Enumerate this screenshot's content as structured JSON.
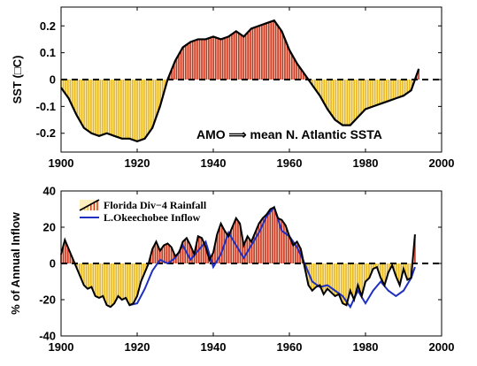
{
  "colors": {
    "positive_bar": "#c8361f",
    "negative_bar": "#e8b822",
    "positive_fill": "#f6d2c3",
    "negative_fill": "#fdf0be",
    "black_line": "#000000",
    "blue_line": "#1f2fbf"
  },
  "chart_data": [
    {
      "type": "area",
      "title": "",
      "ylabel": "SST (□C)",
      "xlabel": "",
      "xlim": [
        1900,
        2000
      ],
      "ylim": [
        -0.27,
        0.27
      ],
      "x_ticks": [
        1900,
        1920,
        1940,
        1960,
        1980,
        2000
      ],
      "x_tick_labels": [
        "1900",
        "1920",
        "1940",
        "1960",
        "1980",
        "2000"
      ],
      "y_ticks": [
        -0.2,
        -0.1,
        0,
        0.1,
        0.2
      ],
      "y_tick_labels": [
        "-0.2",
        "-0.1",
        "0",
        "0.1",
        "0.2"
      ],
      "annotation": "AMO ⟹ mean N. Atlantic SSTA",
      "fill": "bars above/below zero: red above, yellow below",
      "series": [
        {
          "name": "",
          "x": [
            1900,
            1902,
            1904,
            1906,
            1908,
            1910,
            1912,
            1914,
            1916,
            1918,
            1920,
            1922,
            1924,
            1926,
            1928,
            1930,
            1932,
            1934,
            1936,
            1938,
            1940,
            1942,
            1944,
            1946,
            1948,
            1950,
            1952,
            1954,
            1956,
            1958,
            1960,
            1962,
            1964,
            1966,
            1968,
            1970,
            1972,
            1974,
            1976,
            1978,
            1980,
            1982,
            1984,
            1986,
            1988,
            1990,
            1992,
            1994
          ],
          "values": [
            -0.03,
            -0.07,
            -0.13,
            -0.18,
            -0.2,
            -0.21,
            -0.2,
            -0.21,
            -0.22,
            -0.22,
            -0.23,
            -0.22,
            -0.18,
            -0.1,
            0.0,
            0.07,
            0.12,
            0.14,
            0.15,
            0.15,
            0.16,
            0.15,
            0.16,
            0.18,
            0.16,
            0.19,
            0.2,
            0.21,
            0.22,
            0.18,
            0.11,
            0.06,
            0.02,
            -0.02,
            -0.06,
            -0.11,
            -0.15,
            -0.17,
            -0.17,
            -0.14,
            -0.11,
            -0.1,
            -0.09,
            -0.08,
            -0.07,
            -0.06,
            -0.04,
            0.04
          ]
        }
      ]
    },
    {
      "type": "area",
      "title": "",
      "ylabel": "% of Annual Inflow",
      "xlabel": "",
      "xlim": [
        1900,
        2000
      ],
      "ylim": [
        -40,
        40
      ],
      "x_ticks": [
        1900,
        1920,
        1940,
        1960,
        1980,
        2000
      ],
      "x_tick_labels": [
        "1900",
        "1920",
        "1940",
        "1960",
        "1980",
        "2000"
      ],
      "y_ticks": [
        -40,
        -20,
        0,
        20,
        40
      ],
      "y_tick_labels": [
        "-40",
        "-20",
        "0",
        "20",
        "40"
      ],
      "legend": {
        "placement": "top-left"
      },
      "series": [
        {
          "name": "Florida Div−4 Rainfall",
          "style": "black line with red/yellow bar fill",
          "x": [
            1900,
            1901,
            1902,
            1903,
            1904,
            1905,
            1906,
            1907,
            1908,
            1909,
            1910,
            1911,
            1912,
            1913,
            1914,
            1915,
            1916,
            1917,
            1918,
            1919,
            1920,
            1921,
            1922,
            1923,
            1924,
            1925,
            1926,
            1927,
            1928,
            1929,
            1930,
            1931,
            1932,
            1933,
            1934,
            1935,
            1936,
            1937,
            1938,
            1939,
            1940,
            1941,
            1942,
            1943,
            1944,
            1945,
            1946,
            1947,
            1948,
            1949,
            1950,
            1951,
            1952,
            1953,
            1954,
            1955,
            1956,
            1957,
            1958,
            1959,
            1960,
            1961,
            1962,
            1963,
            1964,
            1965,
            1966,
            1967,
            1968,
            1969,
            1970,
            1971,
            1972,
            1973,
            1974,
            1975,
            1976,
            1977,
            1978,
            1979,
            1980,
            1981,
            1982,
            1983,
            1984,
            1985,
            1986,
            1987,
            1988,
            1989,
            1990,
            1991,
            1992,
            1993
          ],
          "values": [
            5,
            13,
            8,
            3,
            -2,
            -7,
            -12,
            -14,
            -13,
            -18,
            -19,
            -18,
            -23,
            -24,
            -22,
            -18,
            -20,
            -19,
            -23,
            -22,
            -18,
            -10,
            -5,
            0,
            8,
            12,
            7,
            10,
            11,
            9,
            4,
            6,
            12,
            14,
            10,
            5,
            15,
            14,
            9,
            2,
            6,
            16,
            22,
            18,
            15,
            20,
            25,
            22,
            10,
            15,
            12,
            17,
            22,
            25,
            27,
            30,
            31,
            25,
            24,
            21,
            15,
            10,
            12,
            8,
            -2,
            -12,
            -15,
            -13,
            -12,
            -17,
            -14,
            -16,
            -18,
            -17,
            -22,
            -23,
            -15,
            -20,
            -12,
            -18,
            -10,
            -8,
            -3,
            -2,
            -8,
            -12,
            -5,
            -1,
            -7,
            -12,
            -3,
            -9,
            -8,
            16
          ]
        },
        {
          "name": "L.Okeechobee Inflow",
          "style": "blue line",
          "x": [
            1918,
            1920,
            1922,
            1924,
            1926,
            1928,
            1930,
            1932,
            1934,
            1936,
            1938,
            1940,
            1942,
            1944,
            1946,
            1948,
            1950,
            1952,
            1954,
            1956,
            1958,
            1960,
            1962,
            1964,
            1966,
            1968,
            1970,
            1972,
            1974,
            1976,
            1978,
            1980,
            1982,
            1984,
            1986,
            1988,
            1990,
            1992,
            1993
          ],
          "values": [
            -23,
            -22,
            -14,
            -4,
            2,
            0,
            3,
            10,
            2,
            7,
            12,
            -2,
            5,
            17,
            10,
            3,
            10,
            17,
            26,
            31,
            18,
            15,
            9,
            0,
            -10,
            -13,
            -12,
            -15,
            -18,
            -24,
            -15,
            -22,
            -15,
            -10,
            -15,
            -18,
            -15,
            -8,
            -2
          ]
        }
      ]
    }
  ]
}
